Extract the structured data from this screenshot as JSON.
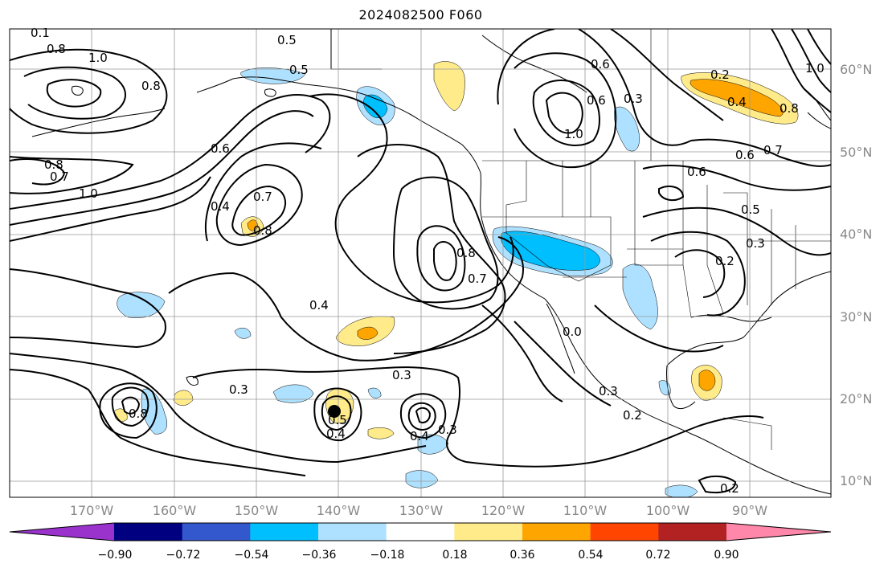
{
  "title": "2024082500 F060",
  "lat_labels": [
    "60°N",
    "50°N",
    "40°N",
    "30°N",
    "20°N",
    "10°N"
  ],
  "lon_labels": [
    "170°W",
    "160°W",
    "150°W",
    "140°W",
    "130°W",
    "120°W",
    "110°W",
    "100°W",
    "90°W"
  ],
  "colorbar": {
    "colors": [
      "#9933cc",
      "#000080",
      "#3357cc",
      "#00bfff",
      "#aee1ff",
      "#ffffff",
      "#ffeb8a",
      "#ffa500",
      "#ff4500",
      "#b22222",
      "#ff88aa"
    ],
    "tick_labels": [
      "−0.90",
      "−0.72",
      "−0.54",
      "−0.36",
      "−0.18",
      "0.18",
      "0.36",
      "0.54",
      "0.72",
      "0.90"
    ]
  },
  "contour_labels": [
    "0.1",
    "0.8",
    "1.0",
    "0.5",
    "0.5",
    "0.8",
    "0.6",
    "0.8",
    "0.7",
    "1.0",
    "0.4",
    "0.7",
    "0.8",
    "0.8",
    "0.7",
    "0.4",
    "0.3",
    "0.3",
    "0.4",
    "0.5",
    "0.4",
    "0.3",
    "0.0",
    "0.3",
    "0.2",
    "0.2",
    "0.6",
    "0.6",
    "1.0",
    "0.3",
    "0.2",
    "0.4",
    "0.8",
    "1.0",
    "0.7",
    "0.6",
    "0.5",
    "0.3",
    "0.2",
    "0.6",
    "0.8"
  ]
}
